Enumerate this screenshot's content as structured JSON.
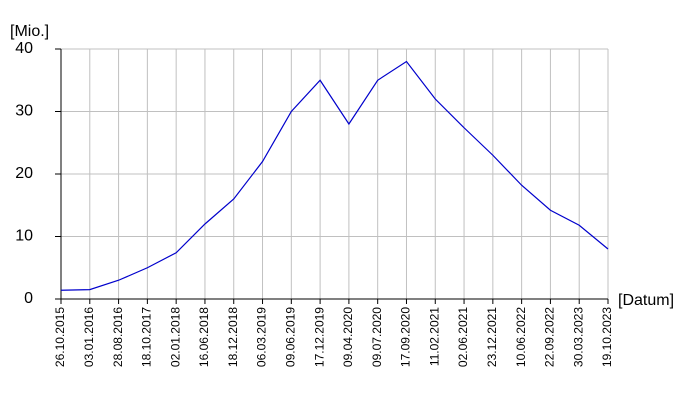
{
  "chart_data": {
    "type": "line",
    "y_label": "[Mio.]",
    "x_label": "[Datum]",
    "categories": [
      "26.10.2015",
      "03.01.2016",
      "28.08.2016",
      "18.10.2017",
      "02.01.2018",
      "16.06.2018",
      "18.12.2018",
      "06.03.2019",
      "09.06.2019",
      "17.12.2019",
      "09.04.2020",
      "09.07.2020",
      "17.09.2020",
      "11.02.2021",
      "02.06.2021",
      "23.12.2021",
      "10.06.2022",
      "22.09.2022",
      "30.03.2023",
      "19.10.2023"
    ],
    "values": [
      1.4,
      1.5,
      3,
      5,
      7.4,
      12,
      16,
      22,
      30,
      35,
      28,
      35,
      38,
      32,
      27.4,
      23,
      18.2,
      14.2,
      11.8,
      8
    ],
    "color": "#0000cc",
    "ylim": [
      0,
      40
    ],
    "yticks": [
      0,
      10,
      20,
      30,
      40
    ],
    "grid": true
  }
}
